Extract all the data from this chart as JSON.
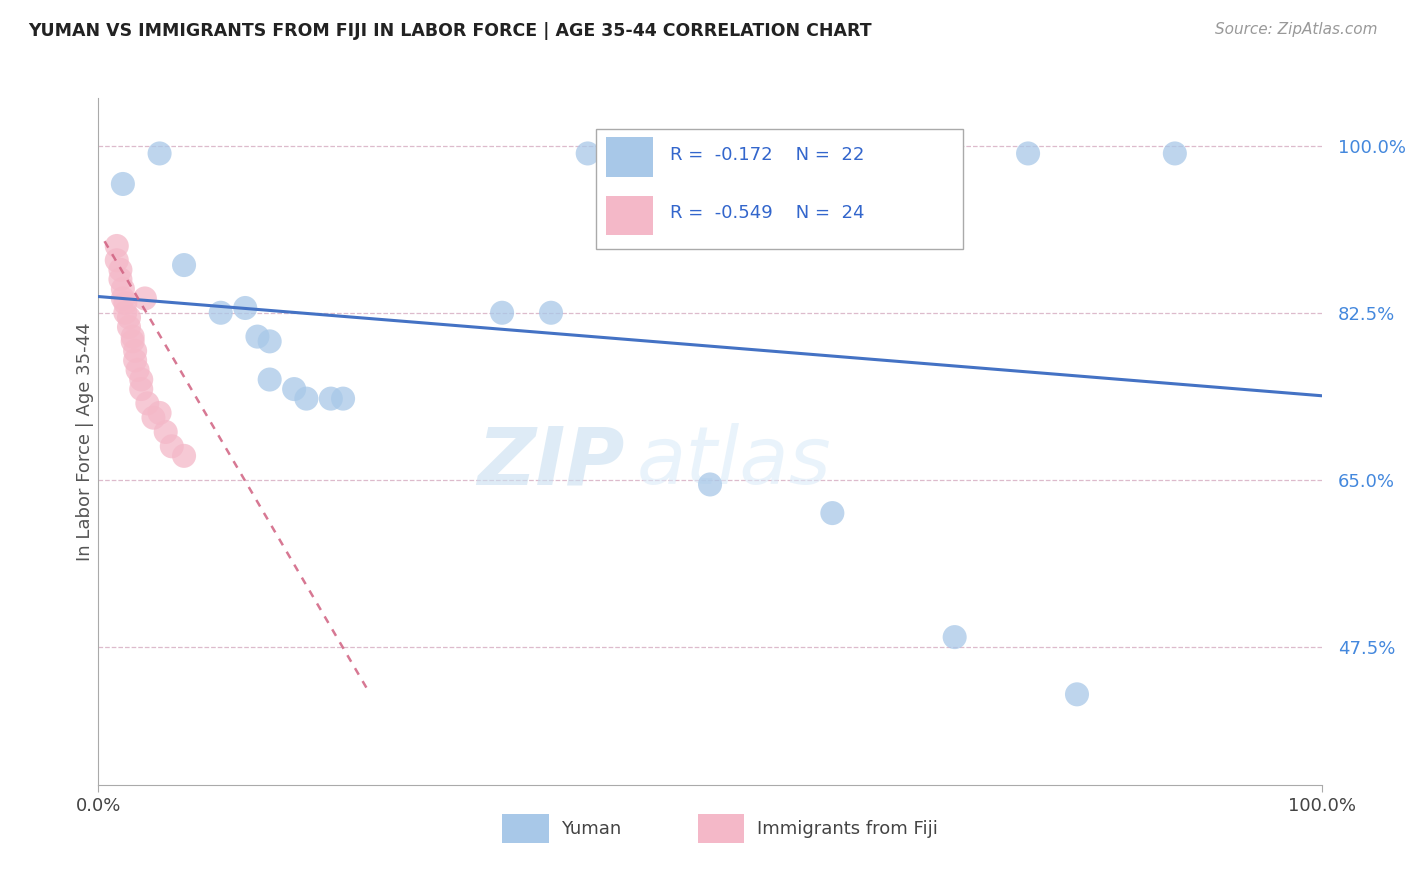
{
  "title": "YUMAN VS IMMIGRANTS FROM FIJI IN LABOR FORCE | AGE 35-44 CORRELATION CHART",
  "source_text": "Source: ZipAtlas.com",
  "ylabel": "In Labor Force | Age 35-44",
  "legend_label_1": "Yuman",
  "legend_label_2": "Immigrants from Fiji",
  "r1": -0.172,
  "n1": 22,
  "r2": -0.549,
  "n2": 24,
  "color_blue": "#a8c8e8",
  "color_pink": "#f4b8c8",
  "color_blue_line": "#4472c4",
  "color_pink_line": "#d06080",
  "xlim": [
    0.0,
    1.0
  ],
  "ylim": [
    0.33,
    1.05
  ],
  "yticks": [
    0.475,
    0.65,
    0.825,
    1.0
  ],
  "ytick_labels": [
    "47.5%",
    "65.0%",
    "82.5%",
    "100.0%"
  ],
  "xtick_labels": [
    "0.0%",
    "100.0%"
  ],
  "xticks": [
    0.0,
    1.0
  ],
  "watermark_zip": "ZIP",
  "watermark_atlas": "atlas",
  "blue_points": [
    [
      0.02,
      0.96
    ],
    [
      0.07,
      0.875
    ],
    [
      0.1,
      0.825
    ],
    [
      0.12,
      0.83
    ],
    [
      0.13,
      0.8
    ],
    [
      0.14,
      0.795
    ],
    [
      0.14,
      0.755
    ],
    [
      0.16,
      0.745
    ],
    [
      0.17,
      0.735
    ],
    [
      0.19,
      0.735
    ],
    [
      0.2,
      0.735
    ],
    [
      0.33,
      0.825
    ],
    [
      0.37,
      0.825
    ],
    [
      0.5,
      0.645
    ],
    [
      0.6,
      0.615
    ],
    [
      0.7,
      0.485
    ],
    [
      0.8,
      0.425
    ],
    [
      0.76,
      0.992
    ],
    [
      0.88,
      0.992
    ],
    [
      0.4,
      0.992
    ],
    [
      0.43,
      0.992
    ],
    [
      0.05,
      0.992
    ]
  ],
  "pink_points": [
    [
      0.015,
      0.895
    ],
    [
      0.015,
      0.88
    ],
    [
      0.018,
      0.87
    ],
    [
      0.018,
      0.86
    ],
    [
      0.02,
      0.85
    ],
    [
      0.02,
      0.84
    ],
    [
      0.022,
      0.835
    ],
    [
      0.022,
      0.825
    ],
    [
      0.025,
      0.82
    ],
    [
      0.025,
      0.81
    ],
    [
      0.028,
      0.8
    ],
    [
      0.028,
      0.795
    ],
    [
      0.03,
      0.785
    ],
    [
      0.03,
      0.775
    ],
    [
      0.032,
      0.765
    ],
    [
      0.035,
      0.755
    ],
    [
      0.035,
      0.745
    ],
    [
      0.038,
      0.84
    ],
    [
      0.04,
      0.73
    ],
    [
      0.045,
      0.715
    ],
    [
      0.05,
      0.72
    ],
    [
      0.055,
      0.7
    ],
    [
      0.06,
      0.685
    ],
    [
      0.07,
      0.675
    ]
  ],
  "blue_line_x": [
    0.0,
    1.0
  ],
  "blue_line_y_start": 0.842,
  "blue_line_y_end": 0.738,
  "pink_line_x": [
    0.005,
    0.22
  ],
  "pink_line_y_start": 0.9,
  "pink_line_y_end": 0.43
}
